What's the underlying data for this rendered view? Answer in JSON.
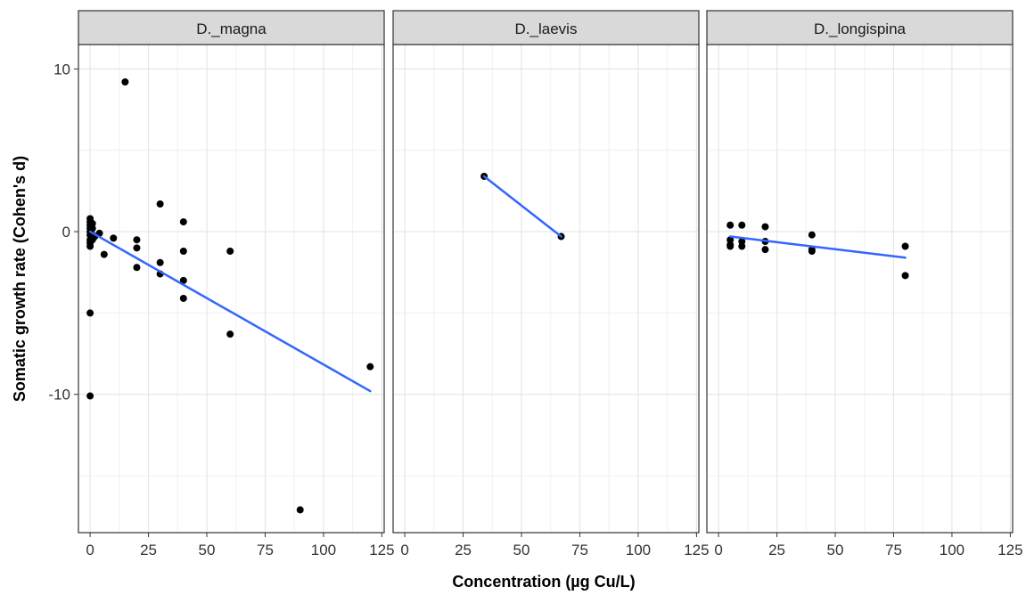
{
  "chart_data": {
    "type": "scatter",
    "xlabel": "Concentration (µg Cu/L)",
    "ylabel": "Somatic growth rate (Cohen's d)",
    "xlim": [
      -5,
      126
    ],
    "ylim": [
      -18.5,
      11.5
    ],
    "x_ticks": [
      0,
      25,
      50,
      75,
      100,
      125
    ],
    "y_ticks": [
      -10,
      0,
      10
    ],
    "grid": true,
    "point_color": "#000000",
    "fit_line_color": "#3366FF",
    "strip_color": "#D9D9D9",
    "facets": [
      {
        "name": "D._magna",
        "points": [
          [
            0,
            0.8
          ],
          [
            0,
            0.6
          ],
          [
            0,
            0.4
          ],
          [
            0,
            0.2
          ],
          [
            0,
            0.0
          ],
          [
            0,
            -0.2
          ],
          [
            0,
            -0.5
          ],
          [
            0,
            -0.7
          ],
          [
            0,
            -0.9
          ],
          [
            0,
            -5.0
          ],
          [
            0,
            -10.1
          ],
          [
            1,
            0.5
          ],
          [
            1,
            0.2
          ],
          [
            1,
            -0.2
          ],
          [
            1,
            -0.5
          ],
          [
            2,
            -0.3
          ],
          [
            4,
            -0.1
          ],
          [
            6,
            -1.4
          ],
          [
            10,
            -0.4
          ],
          [
            15,
            9.2
          ],
          [
            20,
            -0.5
          ],
          [
            20,
            -1.0
          ],
          [
            20,
            -2.2
          ],
          [
            30,
            1.7
          ],
          [
            30,
            -1.9
          ],
          [
            30,
            -2.6
          ],
          [
            40,
            0.6
          ],
          [
            40,
            -1.2
          ],
          [
            40,
            -3.0
          ],
          [
            40,
            -4.1
          ],
          [
            60,
            -1.2
          ],
          [
            60,
            -6.3
          ],
          [
            90,
            -17.1
          ],
          [
            120,
            -8.3
          ]
        ],
        "fit": {
          "x": [
            0,
            120
          ],
          "y": [
            0.0,
            -9.8
          ]
        }
      },
      {
        "name": "D._laevis",
        "points": [
          [
            34,
            3.4
          ],
          [
            67,
            -0.3
          ]
        ],
        "fit": {
          "x": [
            34,
            67
          ],
          "y": [
            3.4,
            -0.3
          ]
        }
      },
      {
        "name": "D._longispina",
        "points": [
          [
            5,
            0.4
          ],
          [
            5,
            -0.5
          ],
          [
            5,
            -0.8
          ],
          [
            5,
            -0.9
          ],
          [
            10,
            0.4
          ],
          [
            10,
            -0.6
          ],
          [
            10,
            -0.9
          ],
          [
            20,
            0.3
          ],
          [
            20,
            -0.6
          ],
          [
            20,
            -1.1
          ],
          [
            40,
            -0.2
          ],
          [
            40,
            -1.1
          ],
          [
            40,
            -1.2
          ],
          [
            80,
            -0.9
          ],
          [
            80,
            -2.7
          ]
        ],
        "fit": {
          "x": [
            5,
            80
          ],
          "y": [
            -0.3,
            -1.6
          ]
        }
      }
    ]
  }
}
